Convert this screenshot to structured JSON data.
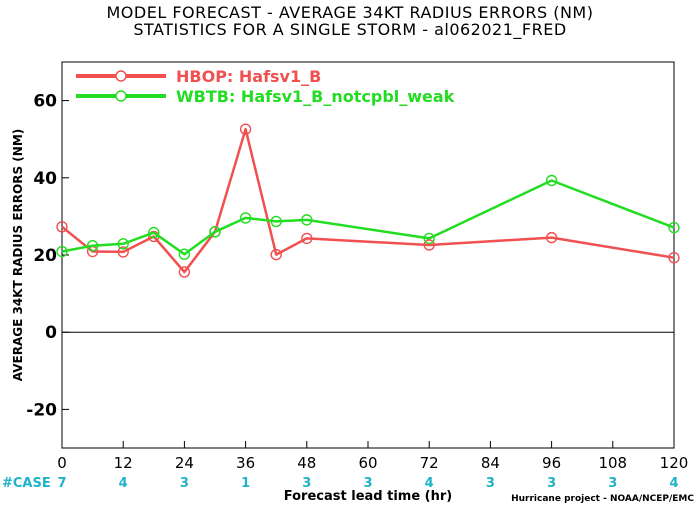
{
  "title_line1": "MODEL FORECAST - AVERAGE 34KT RADIUS ERRORS (NM)",
  "title_line2": "STATISTICS FOR A SINGLE STORM - al062021_FRED",
  "credit": "Hurricane project - NOAA/NCEP/EMC",
  "chart_data": {
    "type": "line",
    "xlabel": "Forecast lead time (hr)",
    "ylabel": "AVERAGE 34KT RADIUS ERRORS (NM)",
    "xlim": [
      0,
      120
    ],
    "ylim": [
      -30,
      70
    ],
    "xticks": [
      0,
      12,
      24,
      36,
      48,
      60,
      72,
      84,
      96,
      108,
      120
    ],
    "yticks": [
      -20,
      0,
      20,
      40,
      60
    ],
    "grid": false,
    "legend_position": "top-left",
    "zero_line": true,
    "case_label": "#CASE",
    "cases": [
      {
        "x": 0,
        "n": "7"
      },
      {
        "x": 12,
        "n": "4"
      },
      {
        "x": 24,
        "n": "3"
      },
      {
        "x": 36,
        "n": "1"
      },
      {
        "x": 48,
        "n": "3"
      },
      {
        "x": 60,
        "n": "3"
      },
      {
        "x": 72,
        "n": "4"
      },
      {
        "x": 84,
        "n": "3"
      },
      {
        "x": 96,
        "n": "3"
      },
      {
        "x": 108,
        "n": "3"
      },
      {
        "x": 120,
        "n": "4"
      }
    ],
    "series": [
      {
        "name": "HBOP: Hafsv1_B",
        "color": "#f05050",
        "x": [
          0,
          6,
          12,
          18,
          24,
          30,
          36,
          42,
          48,
          72,
          96,
          120
        ],
        "values": [
          27.3,
          20.9,
          20.8,
          24.8,
          15.6,
          26.0,
          52.6,
          20.1,
          24.3,
          22.6,
          24.5,
          19.3
        ]
      },
      {
        "name": "WBTB: Hafsv1_B_notcpbl_weak",
        "color": "#22dd22",
        "x": [
          0,
          6,
          12,
          18,
          24,
          30,
          36,
          42,
          48,
          72,
          96,
          120
        ],
        "values": [
          20.9,
          22.4,
          22.9,
          25.8,
          20.2,
          26.0,
          29.6,
          28.7,
          29.1,
          24.3,
          39.3,
          27.1
        ]
      }
    ]
  }
}
